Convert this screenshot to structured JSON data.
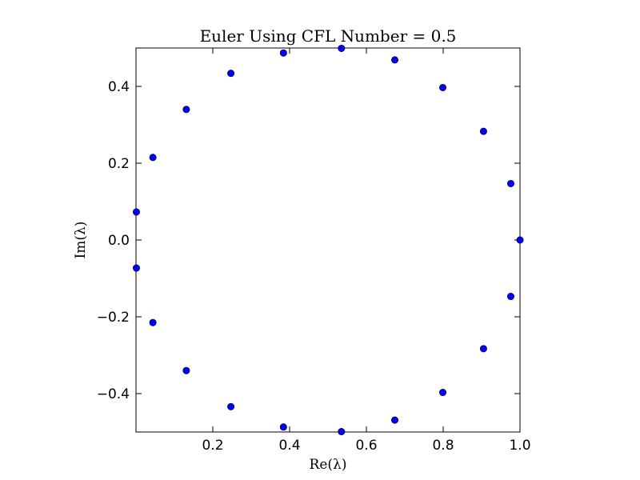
{
  "chart_data": {
    "type": "scatter",
    "title": "Euler Using CFL Number = 0.5",
    "xlabel": "Re(λ)",
    "ylabel": "Im(λ)",
    "xlim": [
      0.0,
      1.0
    ],
    "ylim": [
      -0.5,
      0.5
    ],
    "grid": false,
    "xticks": [
      0.2,
      0.4,
      0.6,
      0.8,
      1.0
    ],
    "xtick_labels": [
      "0.2",
      "0.4",
      "0.6",
      "0.8",
      "1.0"
    ],
    "yticks": [
      -0.4,
      -0.2,
      0.0,
      0.2,
      0.4
    ],
    "ytick_labels": [
      "−0.4",
      "−0.2",
      "0.0",
      "0.2",
      "0.4"
    ],
    "marker_color": "#0000ff",
    "points": [
      {
        "x": 1.0,
        "y": 0.0
      },
      {
        "x": 0.976,
        "y": 0.147
      },
      {
        "x": 0.905,
        "y": 0.283
      },
      {
        "x": 0.799,
        "y": 0.397
      },
      {
        "x": 0.674,
        "y": 0.469
      },
      {
        "x": 0.535,
        "y": 0.499
      },
      {
        "x": 0.384,
        "y": 0.487
      },
      {
        "x": 0.247,
        "y": 0.434
      },
      {
        "x": 0.131,
        "y": 0.34
      },
      {
        "x": 0.044,
        "y": 0.215
      },
      {
        "x": 0.001,
        "y": 0.073
      },
      {
        "x": 0.001,
        "y": -0.073
      },
      {
        "x": 0.044,
        "y": -0.215
      },
      {
        "x": 0.131,
        "y": -0.34
      },
      {
        "x": 0.247,
        "y": -0.434
      },
      {
        "x": 0.384,
        "y": -0.487
      },
      {
        "x": 0.535,
        "y": -0.499
      },
      {
        "x": 0.674,
        "y": -0.469
      },
      {
        "x": 0.799,
        "y": -0.397
      },
      {
        "x": 0.905,
        "y": -0.283
      },
      {
        "x": 0.976,
        "y": -0.147
      }
    ]
  }
}
